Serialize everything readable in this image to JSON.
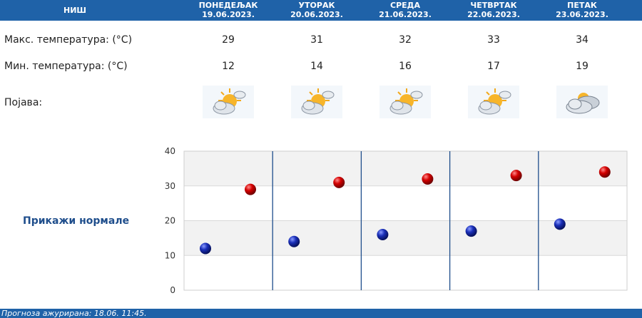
{
  "header": {
    "city": "НИШ",
    "days": [
      {
        "name": "ПОНЕДЕЉАК",
        "date": "19.06.2023."
      },
      {
        "name": "УТОРАК",
        "date": "20.06.2023."
      },
      {
        "name": "СРЕДА",
        "date": "21.06.2023."
      },
      {
        "name": "ЧЕТВРТАК",
        "date": "22.06.2023."
      },
      {
        "name": "ПЕТАК",
        "date": "23.06.2023."
      }
    ]
  },
  "rows": {
    "max_label": "Макс. температура: (°C)",
    "min_label": "Мин. температура: (°C)",
    "phenomenon_label": "Појава:",
    "max": [
      "29",
      "31",
      "32",
      "33",
      "34"
    ],
    "min": [
      "12",
      "14",
      "16",
      "17",
      "19"
    ]
  },
  "icons": [
    "partly-sunny-icon",
    "partly-sunny-icon",
    "partly-sunny-icon",
    "partly-sunny-icon",
    "cloudy-icon"
  ],
  "normals_link": "Прикажи нормале",
  "chart_data": {
    "type": "scatter",
    "title": "",
    "xlabel": "",
    "ylabel": "",
    "ylim": [
      0,
      40
    ],
    "yticks": [
      "0",
      "10",
      "20",
      "30",
      "40"
    ],
    "categories": [
      "19.06.2023.",
      "20.06.2023.",
      "21.06.2023.",
      "22.06.2023.",
      "23.06.2023."
    ],
    "series": [
      {
        "color": "#cc0000",
        "values": [
          29,
          31,
          32,
          33,
          34
        ]
      },
      {
        "color": "#1a2fb8",
        "values": [
          12,
          14,
          16,
          17,
          19
        ]
      }
    ]
  },
  "footer": "Прогноза ажурирана:  18.06. 11:45."
}
